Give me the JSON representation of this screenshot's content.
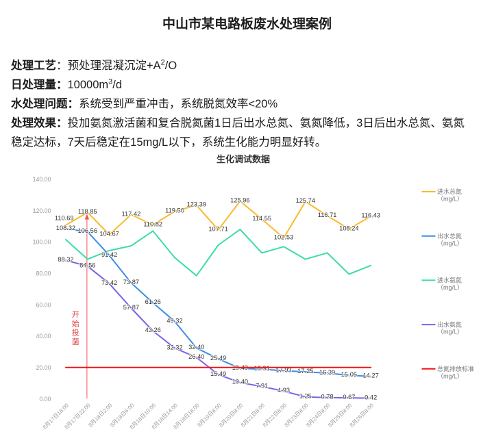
{
  "document": {
    "title": "中山市某电路板废水处理案例",
    "fields": [
      {
        "label": "处理工艺",
        "colon": "：",
        "bold_colon": false,
        "parts": [
          {
            "t": "预处理混凝沉淀+A"
          },
          {
            "t": "2",
            "sup": true
          },
          {
            "t": "/O"
          }
        ]
      },
      {
        "label": "日处理量",
        "colon": "：",
        "bold_colon": true,
        "parts": [
          {
            "t": "10000m"
          },
          {
            "t": "3",
            "sup": true
          },
          {
            "t": "/d"
          }
        ]
      },
      {
        "label": "水处理问题",
        "colon": "：",
        "bold_colon": true,
        "parts": [
          {
            "t": "系统受到严重冲击，系统脱氮效率<20%"
          }
        ]
      },
      {
        "label": "处理效果",
        "colon": "：",
        "bold_colon": true,
        "parts": [
          {
            "t": "投加氨氮激活菌和复合脱氮菌1日后出水总氮、氨氮降低，3日后出水总氮、氨氮"
          }
        ],
        "line2": "稳定达标，7天后稳定在15mg/L以下，系统生化能力明显好转。"
      }
    ]
  },
  "chart_data": {
    "type": "line",
    "title": "生化调试数据",
    "x": [
      "8月17日18:00",
      "8月17日22:00",
      "8月18日2:00",
      "8月18日6:00",
      "8月18日10:00",
      "8月18日14:00",
      "8月18日18:00",
      "8月19日8:00",
      "8月20日8:00",
      "8月21日8:00",
      "8月22日8:00",
      "8月23日8:00",
      "8月24日8:00",
      "8月25日8:00",
      "8月26日8:00"
    ],
    "ylim": [
      0,
      140
    ],
    "y_tick_step": 20,
    "y_tick_labels": [
      "0.00",
      "20.00",
      "40.00",
      "60.00",
      "80.00",
      "100.00",
      "120.00",
      "140.00"
    ],
    "grid": false,
    "legend_position": "right",
    "series": [
      {
        "name": "进水总氮",
        "unit": "（mg/L）",
        "color": "#FBBA28",
        "show_labels": true,
        "values": [
          110.69,
          118.85,
          104.67,
          117.42,
          110.82,
          119.5,
          123.39,
          107.71,
          125.96,
          114.55,
          102.53,
          125.74,
          116.71,
          108.24,
          116.43
        ],
        "labels": [
          "110.69",
          "118.85",
          "104.67",
          "117.42",
          "110.82",
          "119.50",
          "123.39",
          "107.71",
          "125.96",
          "114.55",
          "102.53",
          "125.74",
          "116.71",
          "108.24",
          "116.43"
        ],
        "label_offsets": {
          "0": [
            -2.3,
            -9.2
          ]
        }
      },
      {
        "name": "出水总氮",
        "unit": "（mg/L）",
        "color": "#3C8DE8",
        "show_labels": true,
        "values": [
          108.32,
          106.56,
          91.42,
          73.87,
          61.26,
          49.32,
          32.4,
          25.49,
          19.4,
          18.91,
          17.93,
          17.25,
          16.39,
          15.05,
          14.27
        ],
        "labels": [
          "108.32",
          "106.56",
          "91.42",
          "73.87",
          "61.26",
          "49.32",
          "32.40",
          "25.49",
          "19.40",
          "18.91",
          "17.93",
          "17.25",
          "16.39",
          "15.05",
          "14.27"
        ]
      },
      {
        "name": "进水氨氮",
        "unit": "（mg/L）",
        "color": "#3BDCA8",
        "show_labels": false,
        "values": [
          101.5,
          89,
          94.5,
          97.5,
          107,
          90,
          78.5,
          98,
          108,
          93,
          97,
          89,
          93,
          79.5,
          85
        ]
      },
      {
        "name": "出水氨氮",
        "unit": "（mg/L）",
        "color": "#7D5FEA",
        "show_labels": true,
        "values": [
          88.32,
          84.56,
          73.42,
          57.87,
          43.26,
          32.32,
          26.4,
          15.49,
          10.4,
          7.91,
          4.93,
          1.25,
          0.78,
          0.67,
          0.42
        ],
        "labels": [
          "88.32",
          "84.56",
          "73.42",
          "57.87",
          "43.26",
          "32.32",
          "26.40",
          "15.49",
          "10.40",
          "7.91",
          "4.93",
          "1.25",
          "0.78",
          "0.67",
          "0.42"
        ]
      },
      {
        "name": "总氮排放标准",
        "unit": "（mg/L）",
        "color": "#F41414",
        "show_labels": false,
        "values": [
          20,
          20,
          20,
          20,
          20,
          20,
          20,
          20,
          20,
          20,
          20,
          20,
          20,
          20,
          20
        ],
        "draw_on_top": true
      }
    ],
    "annotation": {
      "text": "开始投菌",
      "x_index": 1,
      "color": "#E23B3B"
    }
  }
}
